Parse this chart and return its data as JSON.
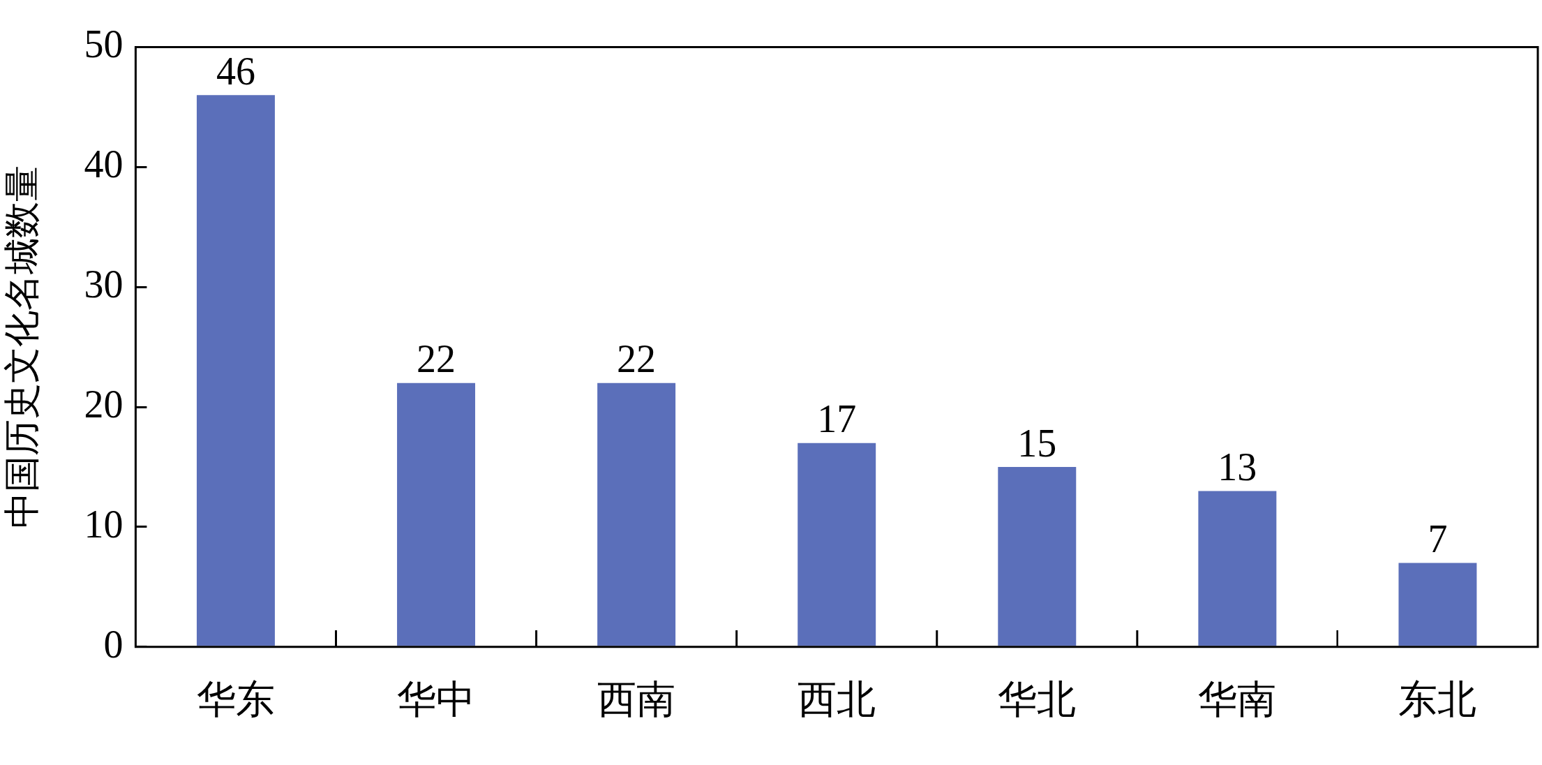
{
  "chart_data": {
    "type": "bar",
    "ylabel": "中国历史文化名城数量",
    "categories": [
      "华东",
      "华中",
      "西南",
      "西北",
      "华北",
      "华南",
      "东北"
    ],
    "values": [
      46,
      22,
      22,
      17,
      15,
      13,
      7
    ],
    "color": "#5b6fba",
    "ylim": [
      0,
      50
    ],
    "yticks": [
      0,
      10,
      20,
      30,
      40,
      50
    ],
    "grid": false,
    "legend": false,
    "data_labels": true
  }
}
